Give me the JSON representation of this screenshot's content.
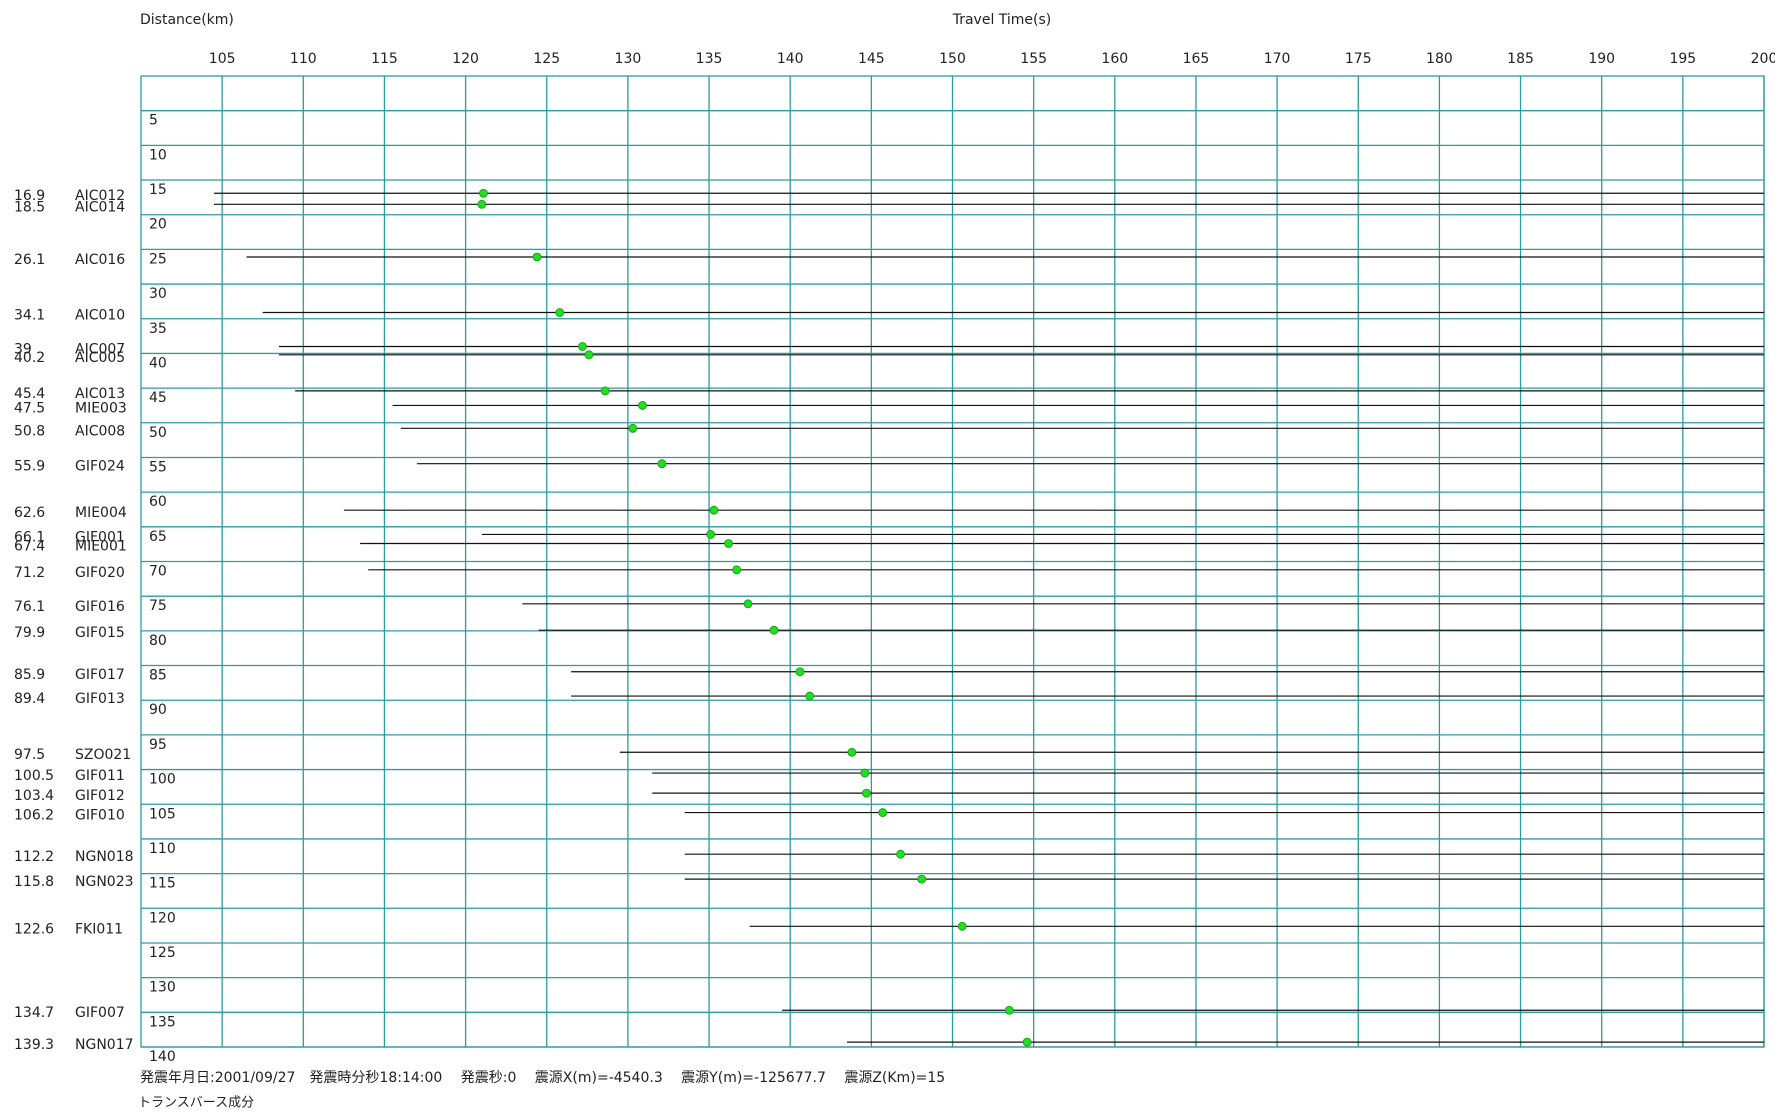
{
  "chart_data": {
    "type": "record-section",
    "x_label": "Travel Time(s)",
    "y_label": "Distance(km)",
    "xlim": [
      100,
      200
    ],
    "xticks": [
      105,
      110,
      115,
      120,
      125,
      130,
      135,
      140,
      145,
      150,
      155,
      160,
      165,
      170,
      175,
      180,
      185,
      190,
      195,
      200
    ],
    "ylim": [
      0,
      140
    ],
    "yticks": [
      5,
      10,
      15,
      20,
      25,
      30,
      35,
      40,
      45,
      50,
      55,
      60,
      65,
      70,
      75,
      80,
      85,
      90,
      95,
      100,
      105,
      110,
      115,
      120,
      125,
      130,
      135,
      140
    ],
    "grid": true,
    "grid_color": "#2a9d9d",
    "trace_color": "#111111",
    "pick_color": "#22dd22",
    "stations": [
      {
        "distance": 16.9,
        "name": "AIC012",
        "pick": 121.1,
        "start": 104.5
      },
      {
        "distance": 18.5,
        "name": "AIC014",
        "pick": 121.0,
        "start": 104.5
      },
      {
        "distance": 26.1,
        "name": "AIC016",
        "pick": 124.4,
        "start": 106.5
      },
      {
        "distance": 34.1,
        "name": "AIC010",
        "pick": 125.8,
        "start": 107.5
      },
      {
        "distance": 39,
        "name": "AIC007",
        "pick": 127.2,
        "start": 108.5
      },
      {
        "distance": 40.2,
        "name": "AIC005",
        "pick": 127.6,
        "start": 108.5
      },
      {
        "distance": 45.4,
        "name": "AIC013",
        "pick": 128.6,
        "start": 109.5
      },
      {
        "distance": 47.5,
        "name": "MIE003",
        "pick": 130.9,
        "start": 115.5
      },
      {
        "distance": 50.8,
        "name": "AIC008",
        "pick": 130.3,
        "start": 116
      },
      {
        "distance": 55.9,
        "name": "GIF024",
        "pick": 132.1,
        "start": 117
      },
      {
        "distance": 62.6,
        "name": "MIE004",
        "pick": 135.3,
        "start": 112.5
      },
      {
        "distance": 66.1,
        "name": "GIF001",
        "pick": 135.1,
        "start": 121
      },
      {
        "distance": 67.4,
        "name": "MIE001",
        "pick": 136.2,
        "start": 113.5
      },
      {
        "distance": 71.2,
        "name": "GIF020",
        "pick": 136.7,
        "start": 114
      },
      {
        "distance": 76.1,
        "name": "GIF016",
        "pick": 137.4,
        "start": 123.5
      },
      {
        "distance": 79.9,
        "name": "GIF015",
        "pick": 139.0,
        "start": 124.5
      },
      {
        "distance": 85.9,
        "name": "GIF017",
        "pick": 140.6,
        "start": 126.5
      },
      {
        "distance": 89.4,
        "name": "GIF013",
        "pick": 141.2,
        "start": 126.5
      },
      {
        "distance": 97.5,
        "name": "SZO021",
        "pick": 143.8,
        "start": 129.5
      },
      {
        "distance": 100.5,
        "name": "GIF011",
        "pick": 144.6,
        "start": 131.5
      },
      {
        "distance": 103.4,
        "name": "GIF012",
        "pick": 144.7,
        "start": 131.5
      },
      {
        "distance": 106.2,
        "name": "GIF010",
        "pick": 145.7,
        "start": 133.5
      },
      {
        "distance": 112.2,
        "name": "NGN018",
        "pick": 146.8,
        "start": 133.5
      },
      {
        "distance": 115.8,
        "name": "NGN023",
        "pick": 148.1,
        "start": 133.5
      },
      {
        "distance": 122.6,
        "name": "FKI011",
        "pick": 150.6,
        "start": 137.5
      },
      {
        "distance": 134.7,
        "name": "GIF007",
        "pick": 153.5,
        "start": 139.5
      },
      {
        "distance": 139.3,
        "name": "NGN017",
        "pick": 154.6,
        "start": 143.5
      }
    ],
    "footer": "発震年月日:2001/09/27　発震時分秒18:14:00　 発震秒:0　 震源X(m)=-4540.3　 震源Y(m)=-125677.7　 震源Z(Km)=15",
    "component": "トランスバース成分"
  }
}
